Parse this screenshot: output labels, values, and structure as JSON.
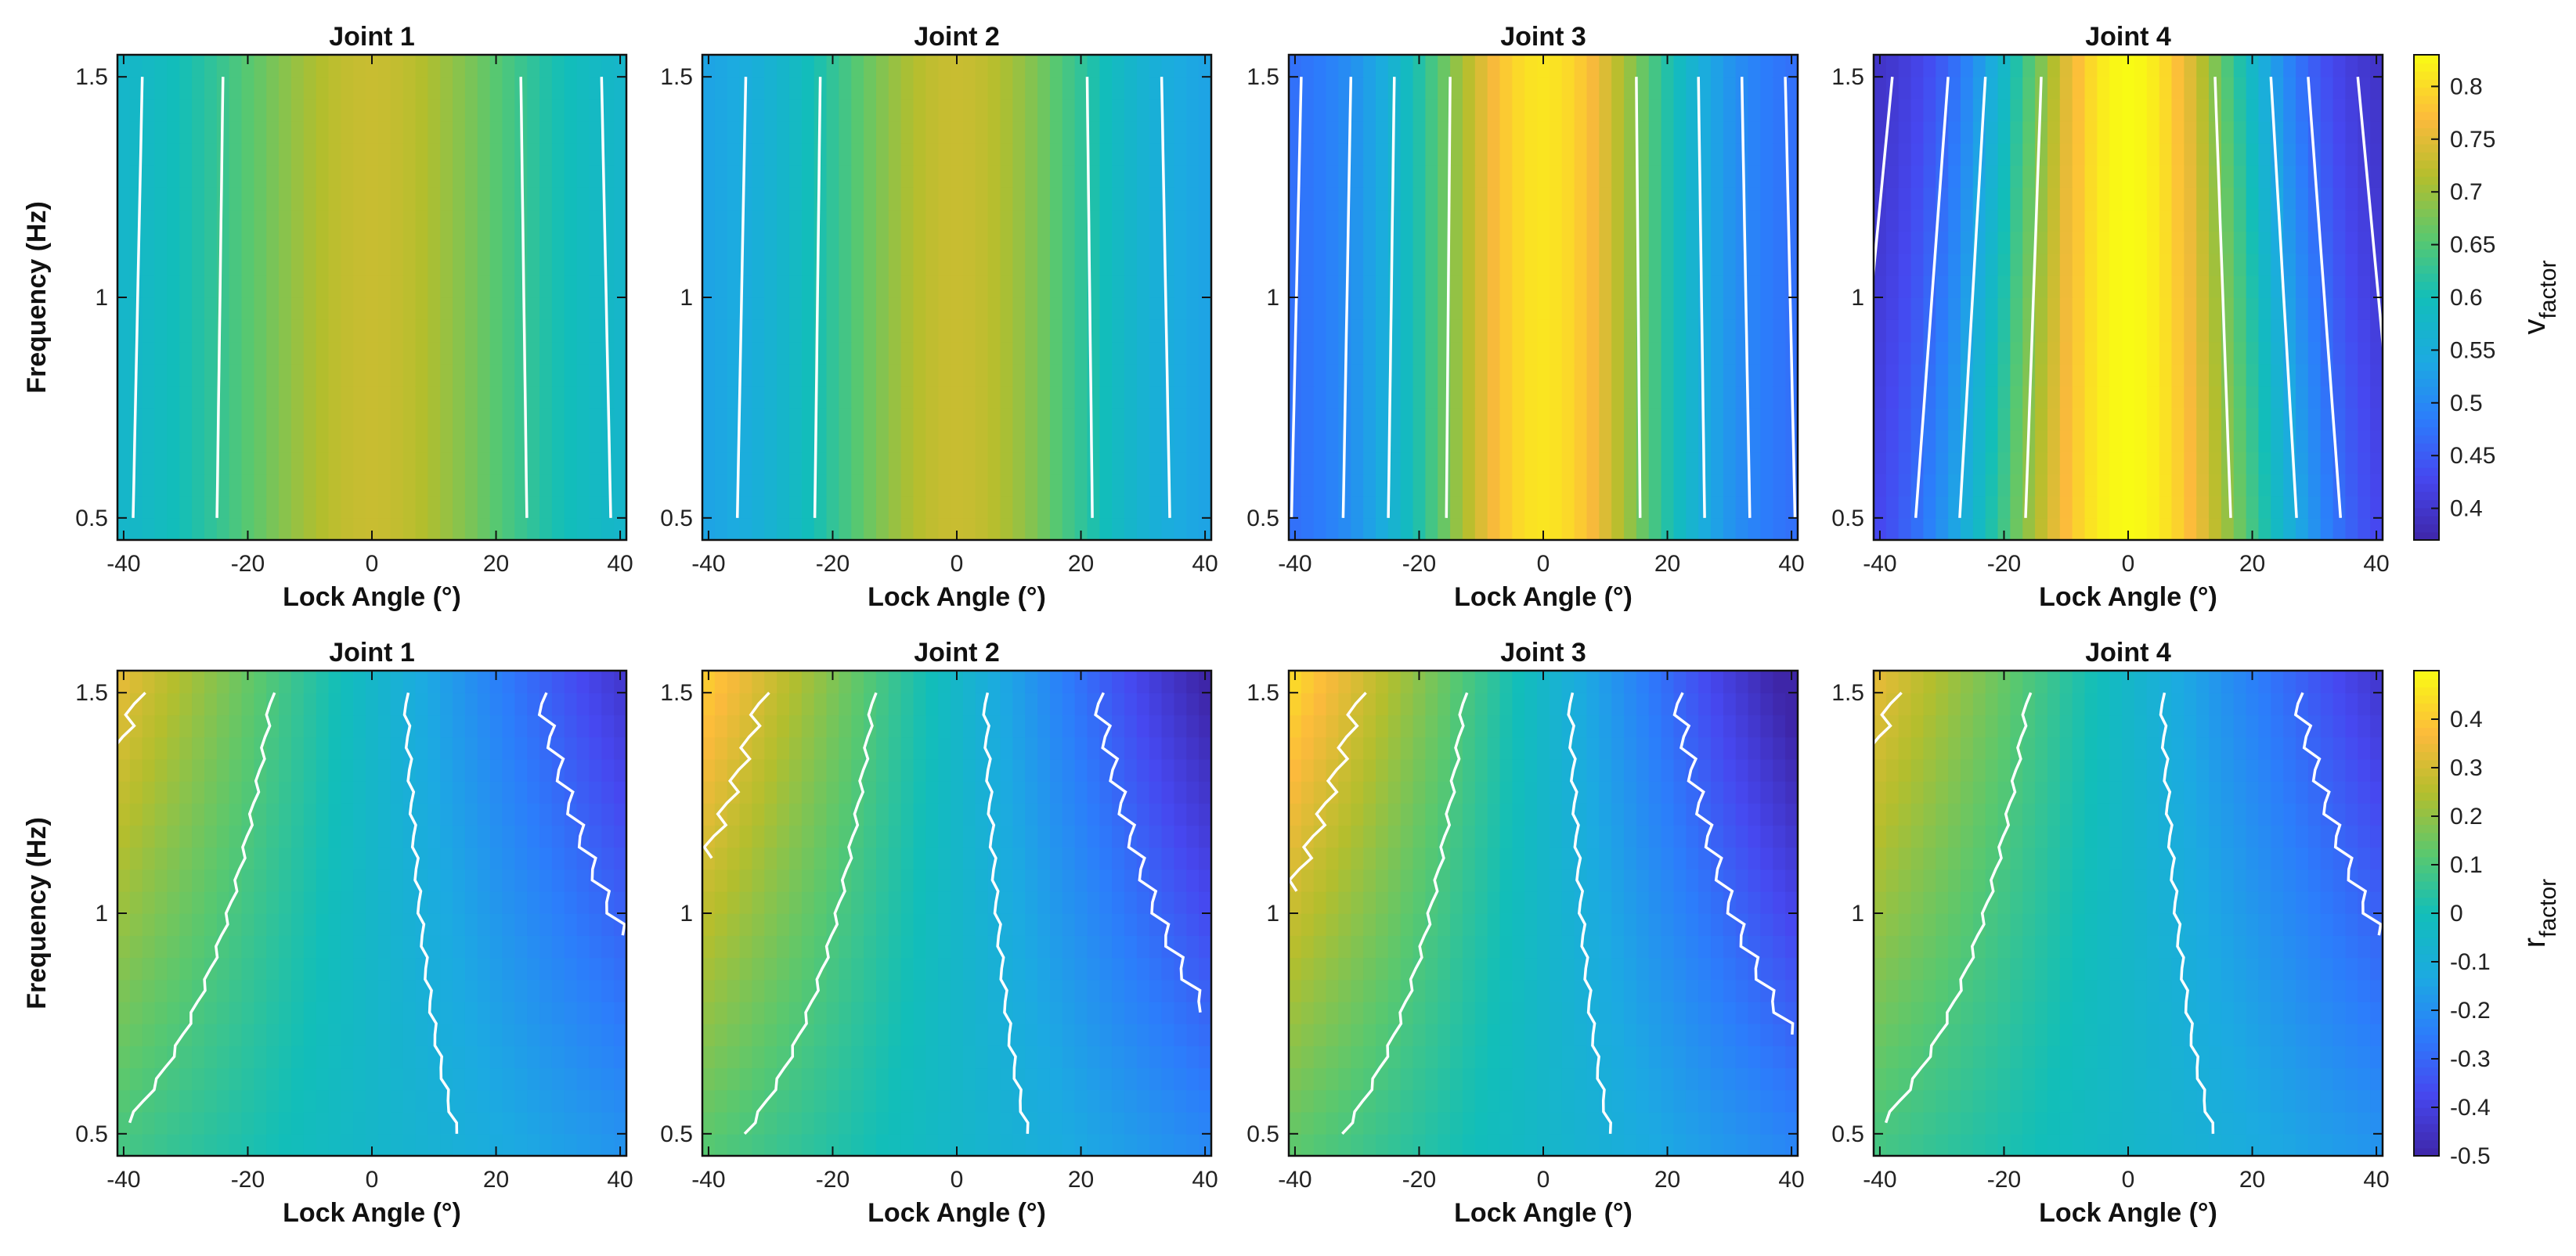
{
  "chart_data": [
    {
      "type": "heatmap",
      "title": "Joint 1",
      "xlabel": "Lock Angle (°)",
      "ylabel": "Frequency (Hz)",
      "xlim": [
        -41,
        41
      ],
      "ylim": [
        0.45,
        1.55
      ],
      "xticks": [
        "-40",
        "-20",
        "0",
        "20",
        "40"
      ],
      "yticks": [
        "0.5",
        "1",
        "1.5"
      ],
      "colorbar_label": "v",
      "colorbar_sub": "factor",
      "clim": [
        0.37,
        0.83
      ],
      "peak": 0.73,
      "edge": 0.56,
      "width": 26,
      "skew": 0,
      "contour_x": [
        -37,
        -24,
        24,
        37
      ]
    },
    {
      "type": "heatmap",
      "title": "Joint 2",
      "xlabel": "Lock Angle (°)",
      "ylabel": "",
      "xlim": [
        -41,
        41
      ],
      "ylim": [
        0.45,
        1.55
      ],
      "xticks": [
        "-40",
        "-20",
        "0",
        "20",
        "40"
      ],
      "yticks": [
        "0.5",
        "1",
        "1.5"
      ],
      "clim": [
        0.37,
        0.83
      ],
      "peak": 0.73,
      "edge": 0.52,
      "width": 24,
      "skew": 0,
      "contour_x": [
        -34,
        -22,
        21,
        33
      ]
    },
    {
      "type": "heatmap",
      "title": "Joint 3",
      "xlabel": "Lock Angle (°)",
      "ylabel": "",
      "xlim": [
        -41,
        41
      ],
      "ylim": [
        0.45,
        1.55
      ],
      "xticks": [
        "-40",
        "-20",
        "0",
        "20",
        "40"
      ],
      "yticks": [
        "0.5",
        "1",
        "1.5"
      ],
      "clim": [
        0.37,
        0.83
      ],
      "peak": 0.81,
      "edge": 0.46,
      "width": 22,
      "skew": 0,
      "contour_x": [
        -39,
        -31,
        -24,
        -15,
        15,
        25,
        32,
        39
      ]
    },
    {
      "type": "heatmap",
      "title": "Joint 4",
      "xlabel": "Lock Angle (°)",
      "ylabel": "",
      "xlim": [
        -41,
        41
      ],
      "ylim": [
        0.45,
        1.55
      ],
      "xticks": [
        "-40",
        "-20",
        "0",
        "20",
        "40"
      ],
      "yticks": [
        "0.5",
        "1",
        "1.5"
      ],
      "clim": [
        0.37,
        0.83
      ],
      "peak": 0.83,
      "edge": 0.38,
      "width": 22,
      "skew": 0.35,
      "contour_x": [
        -38,
        -29,
        -23,
        -14,
        14,
        23,
        29,
        37
      ]
    },
    {
      "type": "heatmap",
      "title": "Joint 1",
      "xlabel": "Lock Angle (°)",
      "ylabel": "Frequency (Hz)",
      "xlim": [
        -41,
        41
      ],
      "ylim": [
        0.45,
        1.55
      ],
      "xticks": [
        "-40",
        "-20",
        "0",
        "20",
        "40"
      ],
      "yticks": [
        "0.5",
        "1",
        "1.5"
      ],
      "colorbar_label": "r",
      "colorbar_sub": "factor",
      "clim": [
        -0.5,
        0.5
      ],
      "slope": 0.0075,
      "center": -0.05,
      "contour_levels": [
        -0.3,
        -0.1,
        0.1,
        0.3
      ]
    },
    {
      "type": "heatmap",
      "title": "Joint 2",
      "xlabel": "Lock Angle (°)",
      "ylabel": "",
      "xlim": [
        -41,
        41
      ],
      "ylim": [
        0.45,
        1.55
      ],
      "xticks": [
        "-40",
        "-20",
        "0",
        "20",
        "40"
      ],
      "yticks": [
        "0.5",
        "1",
        "1.5"
      ],
      "clim": [
        -0.5,
        0.5
      ],
      "slope": 0.009,
      "center": -0.05,
      "contour_levels": [
        -0.3,
        -0.1,
        0.1,
        0.3
      ]
    },
    {
      "type": "heatmap",
      "title": "Joint 3",
      "xlabel": "Lock Angle (°)",
      "ylabel": "",
      "xlim": [
        -41,
        41
      ],
      "ylim": [
        0.45,
        1.55
      ],
      "xticks": [
        "-40",
        "-20",
        "0",
        "20",
        "40"
      ],
      "yticks": [
        "0.5",
        "1",
        "1.5"
      ],
      "clim": [
        -0.5,
        0.5
      ],
      "slope": 0.0095,
      "center": -0.05,
      "contour_levels": [
        -0.3,
        -0.1,
        0.1,
        0.3
      ]
    },
    {
      "type": "heatmap",
      "title": "Joint 4",
      "xlabel": "Lock Angle (°)",
      "ylabel": "",
      "xlim": [
        -41,
        41
      ],
      "ylim": [
        0.45,
        1.55
      ],
      "xticks": [
        "-40",
        "-20",
        "0",
        "20",
        "40"
      ],
      "yticks": [
        "0.5",
        "1",
        "1.5"
      ],
      "clim": [
        -0.5,
        0.5
      ],
      "slope": 0.0075,
      "center": -0.05,
      "contour_levels": [
        -0.3,
        -0.1,
        0.1,
        0.3
      ]
    }
  ],
  "colorbars": [
    {
      "label": "v",
      "sub": "factor",
      "ticks": [
        "0.4",
        "0.45",
        "0.5",
        "0.55",
        "0.6",
        "0.65",
        "0.7",
        "0.75",
        "0.8"
      ],
      "tick_values": [
        0.4,
        0.45,
        0.5,
        0.55,
        0.6,
        0.65,
        0.7,
        0.75,
        0.8
      ],
      "clim": [
        0.37,
        0.83
      ]
    },
    {
      "label": "r",
      "sub": "factor",
      "ticks": [
        "-0.5",
        "-0.4",
        "-0.3",
        "-0.2",
        "-0.1",
        "0",
        "0.1",
        "0.2",
        "0.3",
        "0.4"
      ],
      "tick_values": [
        -0.5,
        -0.4,
        -0.3,
        -0.2,
        -0.1,
        0,
        0.1,
        0.2,
        0.3,
        0.4
      ],
      "clim": [
        -0.5,
        0.5
      ]
    }
  ]
}
